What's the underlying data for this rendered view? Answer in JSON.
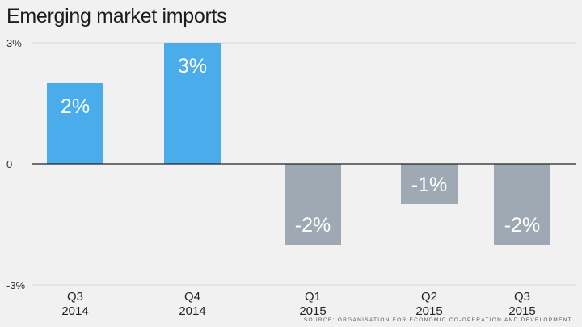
{
  "chart_data": {
    "type": "bar",
    "title": "Emerging market imports",
    "categories": [
      [
        "Q3",
        "2014"
      ],
      [
        "Q4",
        "2014"
      ],
      [
        "Q1",
        "2015"
      ],
      [
        "Q2",
        "2015"
      ],
      [
        "Q3",
        "2015"
      ]
    ],
    "values": [
      2,
      3,
      -2,
      -1,
      -2
    ],
    "data_labels": [
      "2%",
      "3%",
      "-2%",
      "-1%",
      "-2%"
    ],
    "ylim": [
      -3,
      3
    ],
    "yticks": [
      {
        "value": 3,
        "label": "3%"
      },
      {
        "value": 0,
        "label": "0"
      },
      {
        "value": -3,
        "label": "-3%"
      }
    ],
    "grid": true,
    "colors": {
      "positive": "#4aacea",
      "negative": "#9ea9b4",
      "grid": "#d9d9d9",
      "axis": "#222222"
    },
    "source": "Source: Organisation for Economic Co-operation and Development"
  }
}
